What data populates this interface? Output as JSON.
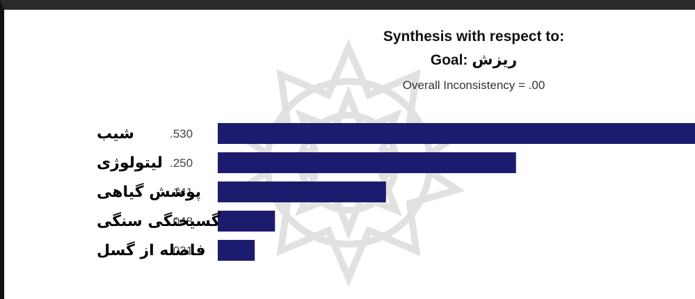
{
  "header": {
    "title": "Synthesis with respect to:",
    "goal_prefix": "Goal: ",
    "goal_value": "ریزش",
    "inconsistency": "Overall Inconsistency = .00"
  },
  "watermark": {
    "icon": "rosette-watermark-icon"
  },
  "colors": {
    "bar": "#1c1c6e",
    "frame": "#2a2a2a"
  },
  "chart_data": {
    "type": "bar",
    "orientation": "horizontal",
    "title": "Synthesis with respect to:",
    "categories": [
      "شیب",
      "لیتولوژی",
      "پوشش گیاهی",
      "گسیختگی سنگی",
      "فاصله از گسل"
    ],
    "values": [
      0.53,
      0.25,
      0.141,
      0.048,
      0.031
    ],
    "value_labels": [
      ".530",
      ".250",
      ".141",
      ".048",
      ".031"
    ],
    "xlim": [
      0,
      0.4
    ],
    "grid": false,
    "legend": "none"
  }
}
